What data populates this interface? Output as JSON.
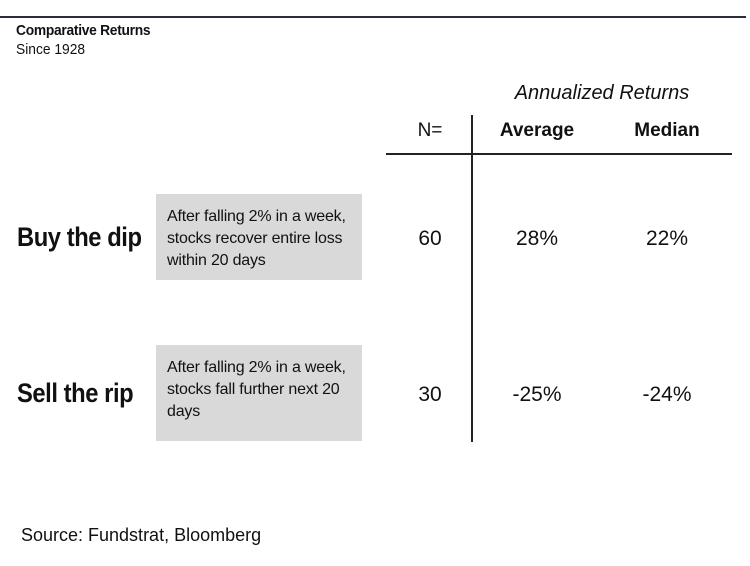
{
  "chart_data": {
    "type": "table",
    "title": "Comparative Returns",
    "subtitle": "Since 1928",
    "column_group": "Annualized Returns",
    "columns": [
      "N=",
      "Average",
      "Median"
    ],
    "rows": [
      {
        "label": "Buy the dip",
        "description": "After falling 2% in a week, stocks recover entire loss within 20 days",
        "n": "60",
        "average": "28%",
        "median": "22%"
      },
      {
        "label": "Sell the rip",
        "description": "After falling 2% in a week, stocks fall further next 20 days",
        "n": "30",
        "average": "-25%",
        "median": "-24%"
      }
    ],
    "source": "Source: Fundstrat, Bloomberg"
  }
}
